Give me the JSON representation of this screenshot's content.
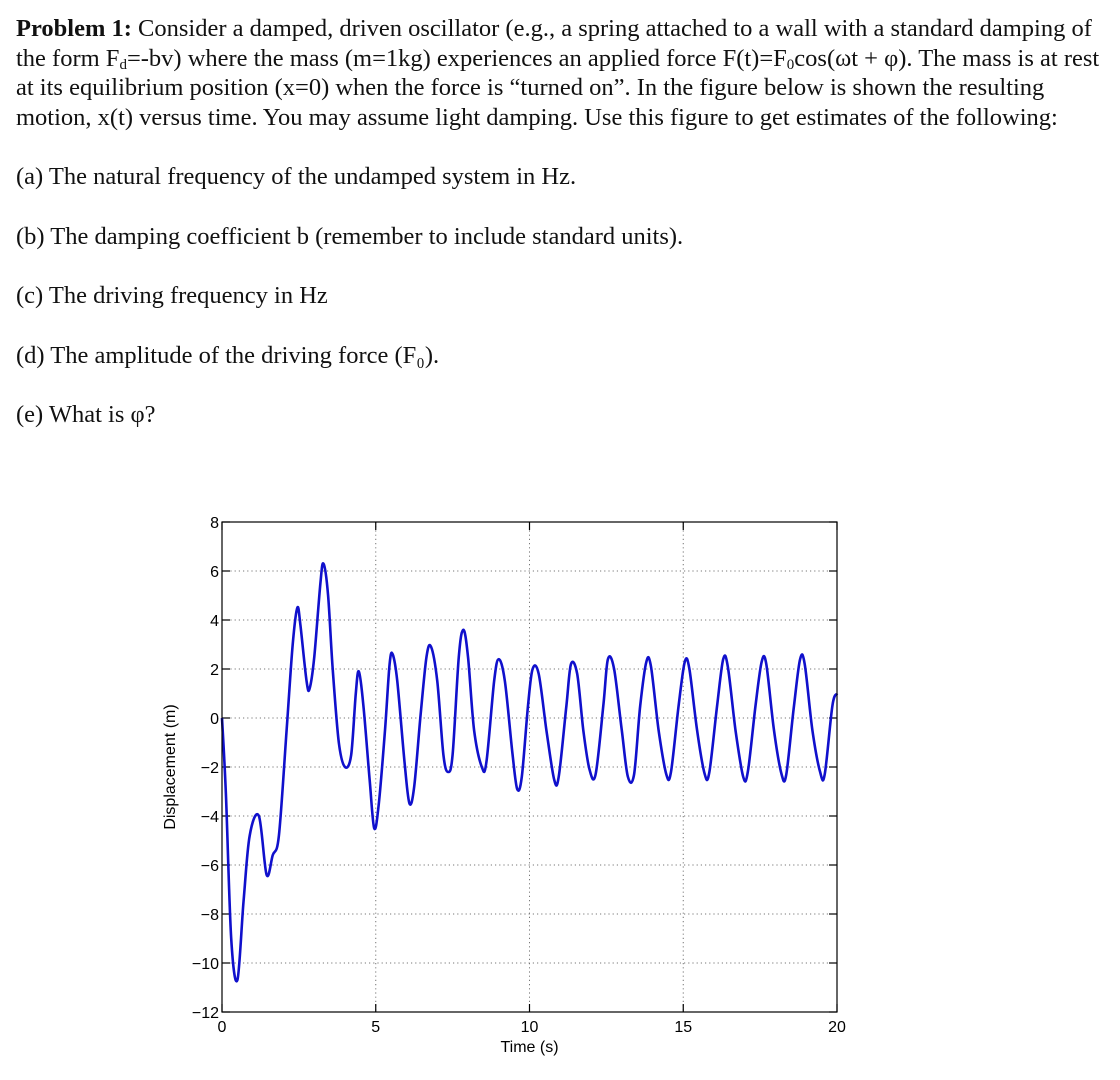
{
  "problem": {
    "label": "Problem 1:",
    "intro_parts": [
      " Consider a damped, driven oscillator (e.g., a spring attached to a wall with a standard damping of the form F",
      "d",
      "=-bv) where the mass (m=1kg) experiences an applied force F(t)=F",
      "0",
      "cos(ωt + φ). The mass is at rest at its equilibrium position (x=0) when the force is “turned on”. In the figure below is shown the resulting motion, x(t) versus time. You may assume light damping. Use this figure to get estimates of the following:"
    ],
    "questions": [
      "(a) The natural frequency of the undamped system in Hz.",
      "(b) The damping coefficient b (remember to include standard units).",
      "(c) The driving frequency in Hz",
      "(d) The amplitude of the driving force (F₀).",
      "(e) What is φ?"
    ]
  },
  "chart_data": {
    "type": "line",
    "xlabel": "Time (s)",
    "ylabel": "Displacement (m)",
    "xlim": [
      0,
      20
    ],
    "ylim": [
      -12,
      8
    ],
    "xticks": [
      0,
      5,
      10,
      15,
      20
    ],
    "yticks": [
      -12,
      -10,
      -8,
      -6,
      -4,
      -2,
      0,
      2,
      4,
      6,
      8
    ],
    "grid": true,
    "color": "#1010cc",
    "series": [
      {
        "points": [
          [
            0,
            0
          ],
          [
            0.13,
            -3.2
          ],
          [
            0.3,
            -9.0
          ],
          [
            0.5,
            -10.7
          ],
          [
            0.7,
            -7.5
          ],
          [
            0.9,
            -4.8
          ],
          [
            1.2,
            -4.0
          ],
          [
            1.45,
            -6.4
          ],
          [
            1.65,
            -5.6
          ],
          [
            1.85,
            -4.8
          ],
          [
            2.1,
            -0.5
          ],
          [
            2.3,
            3.0
          ],
          [
            2.45,
            4.5
          ],
          [
            2.55,
            3.8
          ],
          [
            2.75,
            1.5
          ],
          [
            2.85,
            1.2
          ],
          [
            3.0,
            2.5
          ],
          [
            3.2,
            5.5
          ],
          [
            3.3,
            6.3
          ],
          [
            3.45,
            5.0
          ],
          [
            3.6,
            2.0
          ],
          [
            3.8,
            -1.0
          ],
          [
            4.0,
            -2.0
          ],
          [
            4.2,
            -1.5
          ],
          [
            4.35,
            1.0
          ],
          [
            4.45,
            1.9
          ],
          [
            4.6,
            0.5
          ],
          [
            4.8,
            -2.5
          ],
          [
            4.95,
            -4.5
          ],
          [
            5.1,
            -3.5
          ],
          [
            5.3,
            -0.5
          ],
          [
            5.45,
            2.2
          ],
          [
            5.55,
            2.6
          ],
          [
            5.7,
            1.5
          ],
          [
            5.95,
            -2.0
          ],
          [
            6.1,
            -3.5
          ],
          [
            6.25,
            -2.8
          ],
          [
            6.45,
            0.0
          ],
          [
            6.65,
            2.5
          ],
          [
            6.8,
            2.9
          ],
          [
            7.0,
            1.5
          ],
          [
            7.2,
            -1.5
          ],
          [
            7.35,
            -2.2
          ],
          [
            7.5,
            -1.5
          ],
          [
            7.7,
            2.5
          ],
          [
            7.85,
            3.6
          ],
          [
            8.0,
            2.5
          ],
          [
            8.2,
            -0.5
          ],
          [
            8.45,
            -2.0
          ],
          [
            8.6,
            -1.8
          ],
          [
            8.85,
            1.5
          ],
          [
            9.0,
            2.4
          ],
          [
            9.2,
            1.5
          ],
          [
            9.45,
            -1.5
          ],
          [
            9.6,
            -2.9
          ],
          [
            9.75,
            -2.4
          ],
          [
            9.95,
            0.5
          ],
          [
            10.1,
            2.0
          ],
          [
            10.3,
            1.8
          ],
          [
            10.55,
            -0.5
          ],
          [
            10.8,
            -2.5
          ],
          [
            10.95,
            -2.4
          ],
          [
            11.2,
            0.5
          ],
          [
            11.35,
            2.2
          ],
          [
            11.55,
            1.8
          ],
          [
            11.75,
            -0.5
          ],
          [
            11.95,
            -2.1
          ],
          [
            12.15,
            -2.3
          ],
          [
            12.4,
            0.5
          ],
          [
            12.55,
            2.4
          ],
          [
            12.75,
            2.0
          ],
          [
            13.0,
            -0.5
          ],
          [
            13.2,
            -2.4
          ],
          [
            13.4,
            -2.3
          ],
          [
            13.6,
            0.5
          ],
          [
            13.8,
            2.3
          ],
          [
            13.95,
            2.1
          ],
          [
            14.2,
            -0.5
          ],
          [
            14.45,
            -2.3
          ],
          [
            14.6,
            -2.2
          ],
          [
            14.85,
            0.5
          ],
          [
            15.05,
            2.3
          ],
          [
            15.2,
            2.0
          ],
          [
            15.45,
            -0.5
          ],
          [
            15.7,
            -2.3
          ],
          [
            15.85,
            -2.2
          ],
          [
            16.1,
            0.5
          ],
          [
            16.3,
            2.4
          ],
          [
            16.45,
            2.1
          ],
          [
            16.7,
            -0.5
          ],
          [
            16.95,
            -2.4
          ],
          [
            17.1,
            -2.2
          ],
          [
            17.35,
            0.5
          ],
          [
            17.55,
            2.3
          ],
          [
            17.7,
            2.2
          ],
          [
            17.95,
            -0.5
          ],
          [
            18.2,
            -2.3
          ],
          [
            18.35,
            -2.3
          ],
          [
            18.6,
            0.5
          ],
          [
            18.8,
            2.4
          ],
          [
            18.95,
            2.2
          ],
          [
            19.2,
            -0.5
          ],
          [
            19.45,
            -2.2
          ],
          [
            19.6,
            -2.3
          ],
          [
            19.85,
            0.5
          ],
          [
            20.0,
            1.0
          ]
        ]
      }
    ]
  }
}
